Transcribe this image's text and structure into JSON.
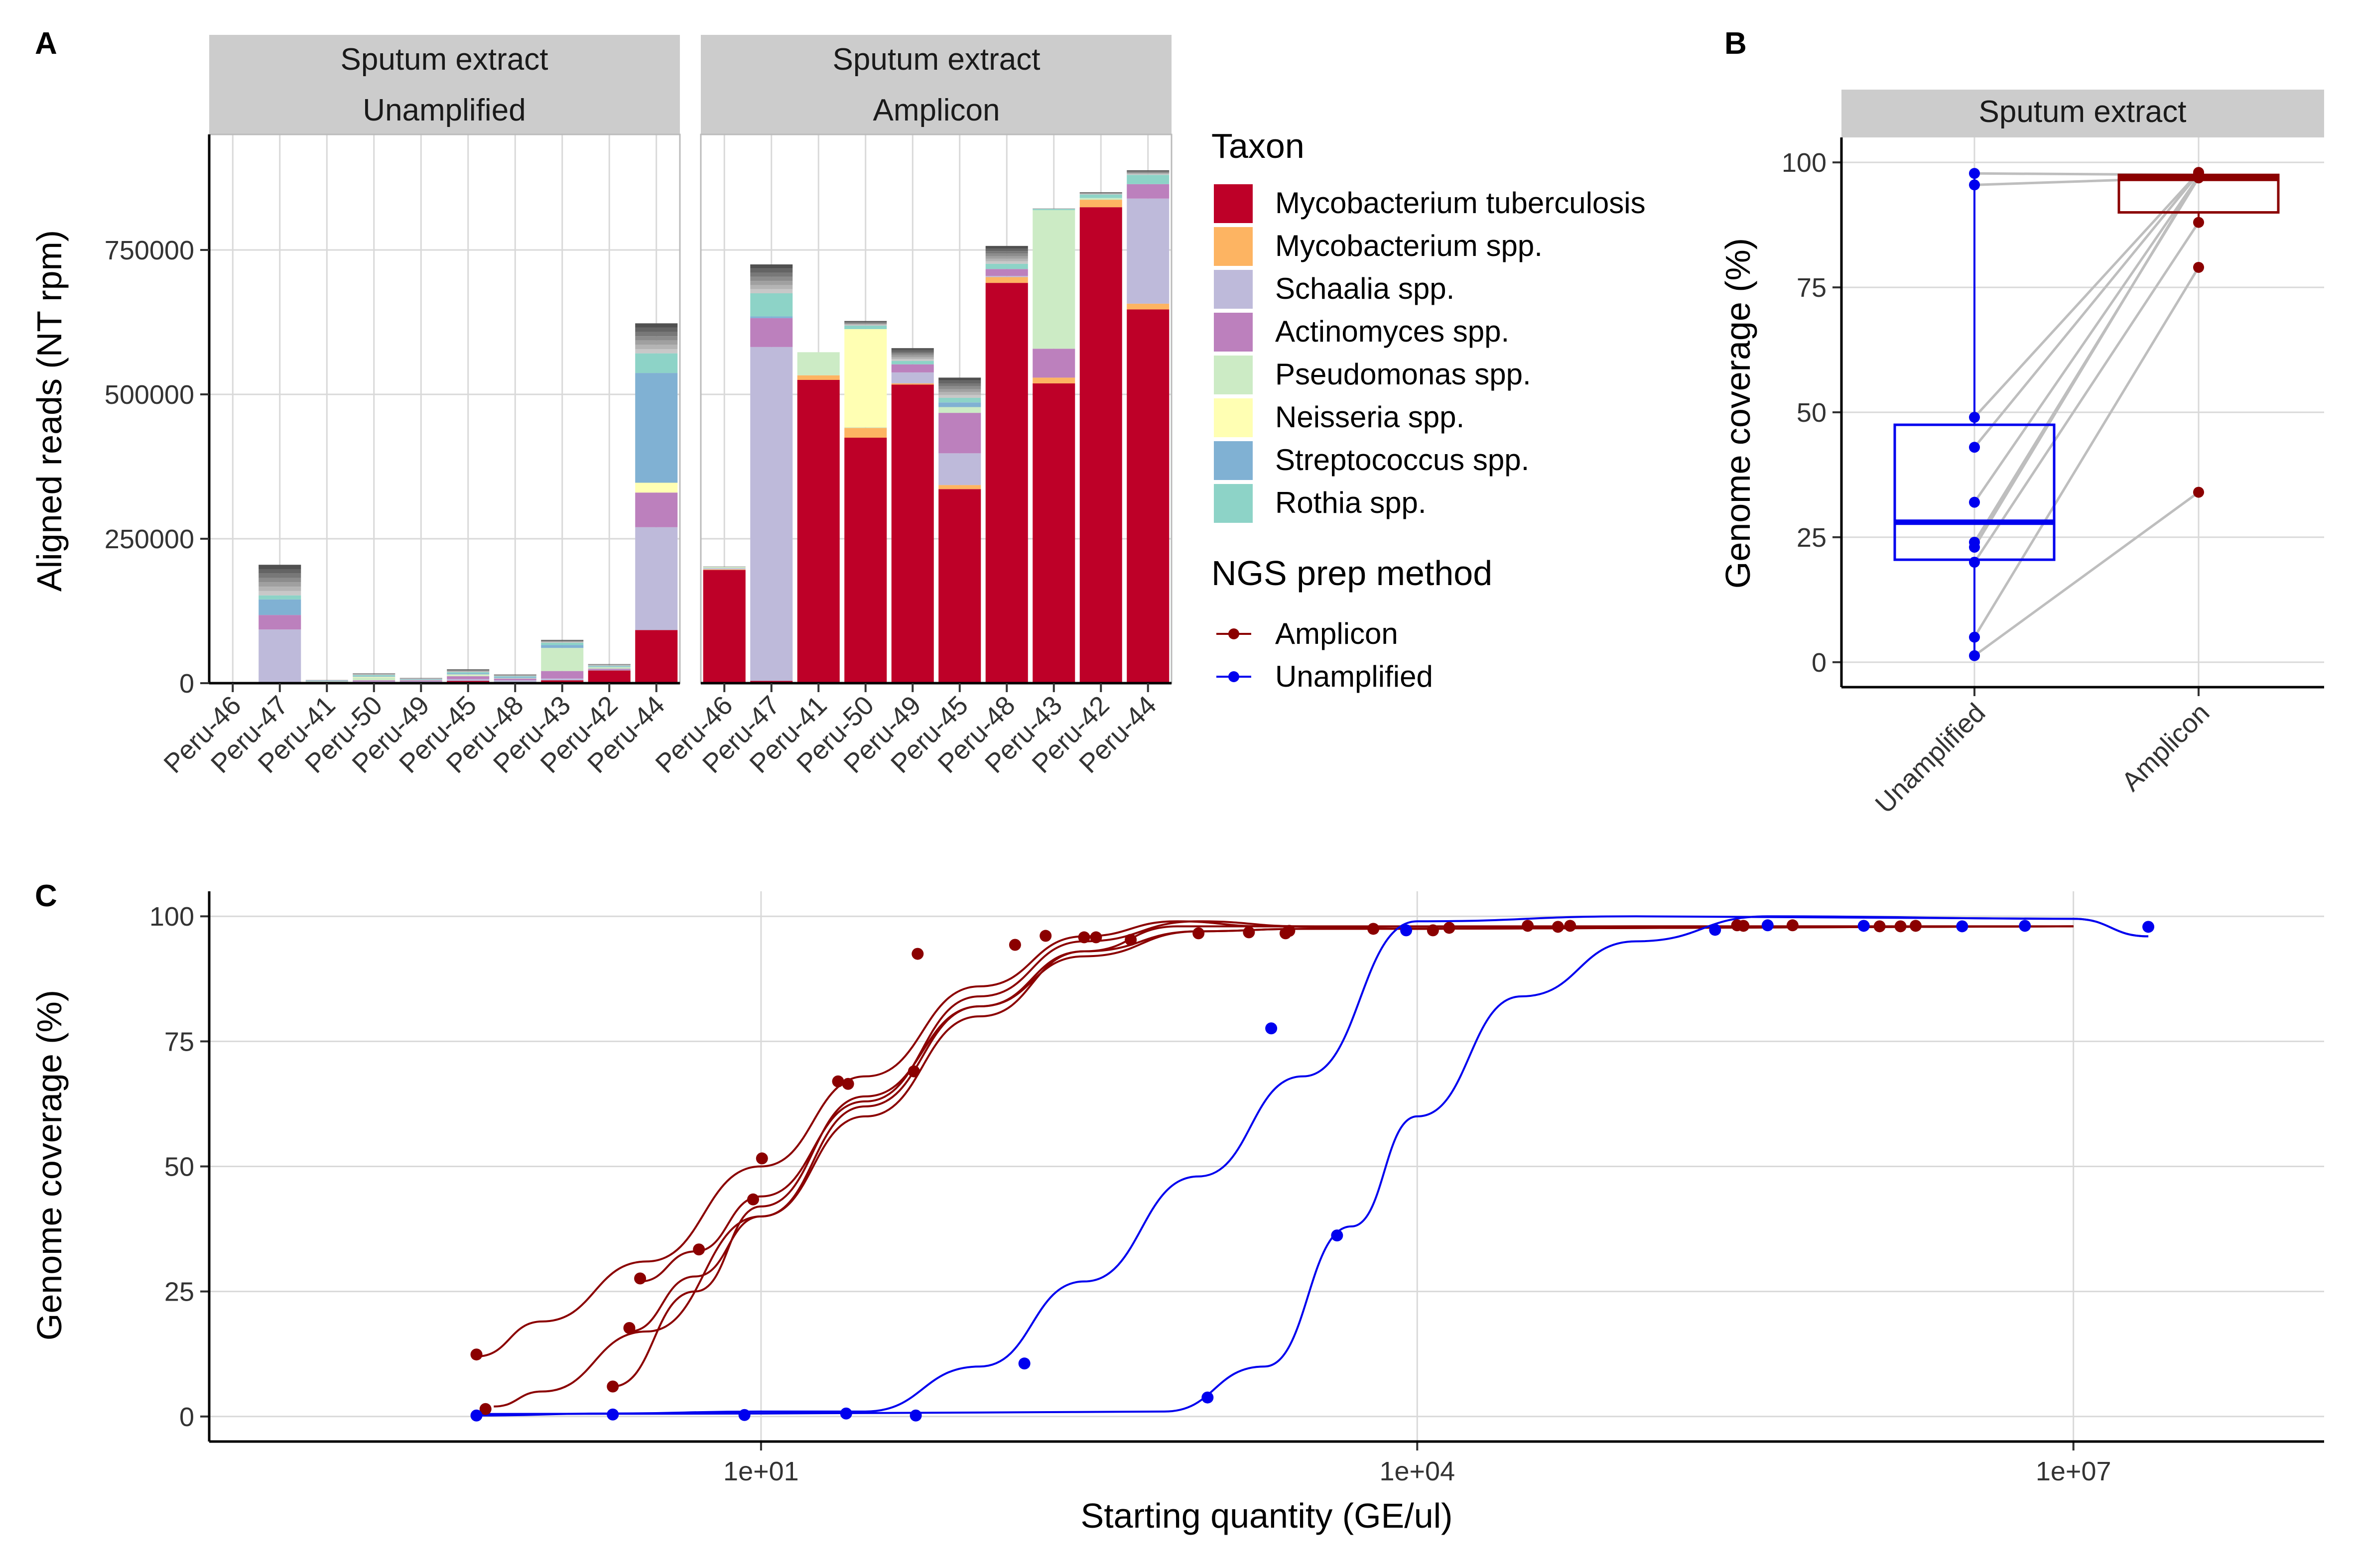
{
  "colors": {
    "taxa": [
      "#BE0028",
      "#FDB462",
      "#BEBADA",
      "#BC80BD",
      "#CCEBC5",
      "#FFFFB3",
      "#80B1D3",
      "#8DD3C7"
    ],
    "amplicon": "#8B0000",
    "unamplified": "#0000EE",
    "strip": "#CCCCCC",
    "grid": "#D9D9D9",
    "other_shades": [
      "#C8C8C8",
      "#B4B4B4",
      "#A0A0A0",
      "#8C8C8C",
      "#787878",
      "#646464",
      "#505050"
    ]
  },
  "panel_tags": [
    "A",
    "B",
    "C"
  ],
  "panel_a": {
    "ylabel": "Aligned reads (NT rpm)",
    "y_ticks": [
      "0",
      "250000",
      "500000",
      "750000"
    ],
    "facets": [
      {
        "line1": "Sputum extract",
        "line2": "Unamplified"
      },
      {
        "line1": "Sputum extract",
        "line2": "Amplicon"
      }
    ]
  },
  "legend": {
    "taxon_title": "Taxon",
    "taxa": [
      "Mycobacterium tuberculosis",
      "Mycobacterium spp.",
      "Schaalia spp.",
      "Actinomyces spp.",
      "Pseudomonas spp.",
      "Neisseria spp.",
      "Streptococcus spp.",
      "Rothia spp."
    ],
    "method_title": "NGS prep method",
    "methods": [
      "Amplicon",
      "Unamplified"
    ]
  },
  "panel_b": {
    "facet": "Sputum extract",
    "ylabel": "Genome coverage (%)",
    "y_ticks": [
      "0",
      "25",
      "50",
      "75",
      "100"
    ],
    "x_ticks": [
      "Unamplified",
      "Amplicon"
    ]
  },
  "panel_c": {
    "ylabel": "Genome coverage (%)",
    "xlabel": "Starting quantity (GE/ul)",
    "y_ticks": [
      "0",
      "25",
      "50",
      "75",
      "100"
    ],
    "x_ticks": [
      "1e+01",
      "1e+04",
      "1e+07"
    ]
  },
  "chart_data": [
    {
      "panel": "A",
      "type": "bar",
      "stacked": true,
      "ylim": [
        0,
        950000
      ],
      "categories": [
        "Peru-46",
        "Peru-47",
        "Peru-41",
        "Peru-50",
        "Peru-49",
        "Peru-45",
        "Peru-48",
        "Peru-43",
        "Peru-42",
        "Peru-44"
      ],
      "facets": [
        {
          "name": "Sputum extract Unamplified",
          "series": [
            {
              "name": "Mycobacterium tuberculosis",
              "values": [
                500,
                0,
                500,
                1000,
                1000,
                4000,
                2000,
                5000,
                22000,
                92000
              ]
            },
            {
              "name": "Mycobacterium spp.",
              "values": [
                0,
                0,
                0,
                0,
                0,
                0,
                0,
                0,
                0,
                0
              ]
            },
            {
              "name": "Schaalia spp.",
              "values": [
                0,
                93000,
                1000,
                2000,
                2000,
                3000,
                3000,
                3000,
                1000,
                178000
              ]
            },
            {
              "name": "Actinomyces spp.",
              "values": [
                0,
                25000,
                1000,
                2000,
                2000,
                5000,
                3000,
                13000,
                2000,
                60000
              ]
            },
            {
              "name": "Pseudomonas spp.",
              "values": [
                0,
                0,
                1000,
                5000,
                1000,
                2000,
                1000,
                40000,
                3000,
                0
              ]
            },
            {
              "name": "Neisseria spp.",
              "values": [
                0,
                0,
                0,
                1000,
                0,
                1000,
                0,
                0,
                0,
                17000
              ]
            },
            {
              "name": "Streptococcus spp.",
              "values": [
                0,
                27000,
                1000,
                1000,
                1000,
                2000,
                2000,
                5000,
                1000,
                190000
              ]
            },
            {
              "name": "Rothia spp.",
              "values": [
                0,
                7000,
                0,
                2000,
                0,
                2000,
                1000,
                4000,
                1000,
                34000
              ]
            }
          ],
          "other_taxa_total": [
            0,
            53000,
            1000,
            3000,
            2000,
            5000,
            3000,
            5000,
            3000,
            52000
          ]
        },
        {
          "name": "Sputum extract Amplicon",
          "series": [
            {
              "name": "Mycobacterium tuberculosis",
              "values": [
                196000,
                4000,
                525000,
                425000,
                517000,
                336000,
                693000,
                519000,
                824000,
                647000
              ]
            },
            {
              "name": "Mycobacterium spp.",
              "values": [
                1000,
                0,
                8000,
                17000,
                2000,
                7000,
                10000,
                10000,
                13000,
                10000
              ]
            },
            {
              "name": "Schaalia spp.",
              "values": [
                2000,
                578000,
                0,
                0,
                19000,
                55000,
                2000,
                0,
                0,
                182000
              ]
            },
            {
              "name": "Actinomyces spp.",
              "values": [
                0,
                50000,
                0,
                0,
                14000,
                70000,
                12000,
                50000,
                0,
                25000
              ]
            },
            {
              "name": "Pseudomonas spp.",
              "values": [
                2000,
                0,
                40000,
                1000,
                0,
                10000,
                0,
                240000,
                3000,
                0
              ]
            },
            {
              "name": "Neisseria spp.",
              "values": [
                0,
                0,
                0,
                170000,
                0,
                0,
                0,
                0,
                0,
                0
              ]
            },
            {
              "name": "Streptococcus spp.",
              "values": [
                0,
                3000,
                0,
                0,
                0,
                8000,
                0,
                0,
                0,
                0
              ]
            },
            {
              "name": "Rothia spp.",
              "values": [
                0,
                40000,
                0,
                6000,
                6000,
                8000,
                9000,
                2000,
                6000,
                16000
              ]
            }
          ],
          "other_taxa_total": [
            1000,
            50000,
            0,
            8000,
            22000,
            35000,
            31000,
            1000,
            4000,
            8000
          ]
        }
      ]
    },
    {
      "panel": "B",
      "type": "box",
      "ylim": [
        -5,
        105
      ],
      "categories": [
        "Unamplified",
        "Amplicon"
      ],
      "series": [
        {
          "name": "Unamplified",
          "values": [
            97.8,
            95.5,
            49,
            43,
            32,
            24,
            23,
            20,
            5,
            1.3
          ]
        },
        {
          "name": "Amplicon",
          "values": [
            97.5,
            97,
            98,
            97.8,
            97.2,
            96.9,
            97.3,
            88,
            79,
            34
          ]
        }
      ],
      "boxes": [
        {
          "name": "Unamplified",
          "q1": 20.5,
          "median": 28,
          "q3": 47.5,
          "whisker_low": 1.3,
          "whisker_high": 97.8
        },
        {
          "name": "Amplicon",
          "q1": 90,
          "median": 96.8,
          "q3": 97.5,
          "whisker_low": 88,
          "whisker_high": 98
        }
      ],
      "pairs": [
        [
          97.8,
          97.5
        ],
        [
          95.5,
          97.0
        ],
        [
          49,
          98.0
        ],
        [
          43,
          97.8
        ],
        [
          32,
          97.2
        ],
        [
          24,
          96.9
        ],
        [
          23,
          97.3
        ],
        [
          20,
          88
        ],
        [
          5,
          79
        ],
        [
          1.3,
          34
        ]
      ]
    },
    {
      "panel": "C",
      "type": "scatter",
      "x_scale": "log10",
      "xlim": [
        0.03,
        140000000
      ],
      "ylim": [
        -5,
        105
      ],
      "series": [
        {
          "name": "Amplicon",
          "points": [
            [
              0.5,
              12.4
            ],
            [
              0.55,
              1.5
            ],
            [
              2.1,
              6.0
            ],
            [
              2.5,
              17.7
            ],
            [
              2.8,
              27.6
            ],
            [
              5.2,
              33.4
            ],
            [
              9.2,
              43.4
            ],
            [
              25,
              66.5
            ],
            [
              10.1,
              51.6
            ],
            [
              22.5,
              67.0
            ],
            [
              50,
              69.0
            ],
            [
              52,
              92.5
            ],
            [
              145,
              94.3
            ],
            [
              200,
              96.1
            ],
            [
              300,
              95.8
            ],
            [
              340,
              95.8
            ],
            [
              490,
              95.3
            ],
            [
              1000,
              96.6
            ],
            [
              1700,
              96.8
            ],
            [
              2500,
              96.6
            ],
            [
              2600,
              97.1
            ],
            [
              6300,
              97.5
            ],
            [
              11800,
              97.2
            ],
            [
              14000,
              97.7
            ],
            [
              32000,
              98.1
            ],
            [
              44000,
              97.9
            ],
            [
              50000,
              98.1
            ],
            [
              290000,
              98.2
            ],
            [
              310000,
              98.1
            ],
            [
              520000,
              98.2
            ],
            [
              1300000,
              98.0
            ],
            [
              1620000,
              98.0
            ],
            [
              1900000,
              98.1
            ]
          ],
          "fits": [
            [
              [
                0.5,
                12
              ],
              [
                1,
                19
              ],
              [
                3,
                31
              ],
              [
                10,
                50
              ],
              [
                30,
                68
              ],
              [
                100,
                86
              ],
              [
                300,
                96
              ],
              [
                800,
                99
              ],
              [
                2000,
                98
              ],
              [
                10000,
                97.5
              ],
              [
                100000,
                98
              ],
              [
                10000000,
                98
              ]
            ],
            [
              [
                0.6,
                2
              ],
              [
                1,
                5
              ],
              [
                3,
                17
              ],
              [
                10,
                40
              ],
              [
                30,
                62
              ],
              [
                100,
                82
              ],
              [
                300,
                93
              ],
              [
                800,
                98
              ],
              [
                3000,
                98
              ],
              [
                10000,
                97.5
              ],
              [
                10000000,
                98
              ]
            ],
            [
              [
                2.1,
                6
              ],
              [
                5,
                25
              ],
              [
                10,
                42
              ],
              [
                30,
                64
              ],
              [
                100,
                82
              ],
              [
                300,
                92
              ],
              [
                1000,
                97
              ],
              [
                3000,
                97.5
              ],
              [
                10000,
                97.5
              ],
              [
                10000000,
                98
              ]
            ],
            [
              [
                2.5,
                17
              ],
              [
                5,
                28
              ],
              [
                10,
                40
              ],
              [
                30,
                60
              ],
              [
                100,
                80
              ],
              [
                300,
                93
              ],
              [
                1000,
                97
              ],
              [
                3000,
                97.5
              ],
              [
                10000000,
                98
              ]
            ],
            [
              [
                2.8,
                27
              ],
              [
                5,
                33
              ],
              [
                10,
                44
              ],
              [
                30,
                63
              ],
              [
                100,
                84
              ],
              [
                300,
                95
              ],
              [
                1000,
                99
              ],
              [
                3000,
                98
              ],
              [
                10000000,
                98
              ]
            ]
          ]
        },
        {
          "name": "Unamplified",
          "points": [
            [
              0.5,
              0.2
            ],
            [
              2.1,
              0.4
            ],
            [
              8.4,
              0.3
            ],
            [
              24.5,
              0.6
            ],
            [
              51,
              0.2
            ],
            [
              160,
              10.6
            ],
            [
              1100,
              3.8
            ],
            [
              2150,
              77.6
            ],
            [
              4300,
              36.2
            ],
            [
              8900,
              97.2
            ],
            [
              230000,
              97.3
            ],
            [
              400000,
              98.2
            ],
            [
              1100000,
              98.1
            ],
            [
              3100000,
              98.0
            ],
            [
              6000000,
              98.1
            ],
            [
              22000000,
              97.9
            ]
          ],
          "fits": [
            [
              [
                0.5,
                0.2
              ],
              [
                2,
                0.6
              ],
              [
                10,
                1
              ],
              [
                30,
                1
              ],
              [
                100,
                10
              ],
              [
                300,
                27
              ],
              [
                1000,
                48
              ],
              [
                3000,
                68
              ],
              [
                10000,
                99
              ],
              [
                100000,
                100
              ],
              [
                10000000,
                99.5
              ],
              [
                22000000,
                96
              ]
            ],
            [
              [
                0.5,
                0.5
              ],
              [
                10,
                0.6
              ],
              [
                100,
                0.8
              ],
              [
                700,
                1
              ],
              [
                2000,
                10
              ],
              [
                5000,
                38
              ],
              [
                10000,
                60
              ],
              [
                30000,
                84
              ],
              [
                100000,
                95
              ],
              [
                400000,
                100
              ],
              [
                10000000,
                99.5
              ],
              [
                22000000,
                96
              ]
            ]
          ]
        }
      ]
    }
  ]
}
